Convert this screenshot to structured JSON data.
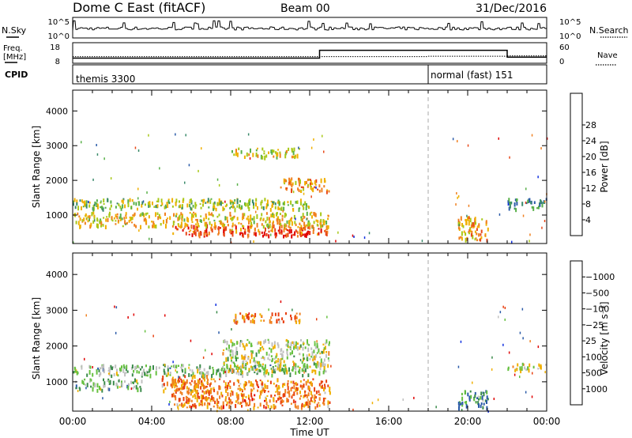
{
  "header": {
    "title": "Dome C East (fitACF)",
    "beam": "Beam 00",
    "date": "31/Dec/2016"
  },
  "strip_labels": {
    "nsky": "N.Sky",
    "nsearch": "N.Search",
    "freq_top": "Freq.",
    "freq_unit": "[MHz]",
    "nave": "Nave",
    "cpid": "CPID",
    "nsky_top": "10^5",
    "nsky_bottom": "10^0",
    "nsearch_top": "10^5",
    "nsearch_bottom": "10^0",
    "freq_max": "18",
    "freq_min": "8",
    "nave_max": "60",
    "nave_min": "0"
  },
  "cpid_modes": [
    {
      "label": "themis 3300",
      "start_hour": 0
    },
    {
      "label": "normal (fast) 151",
      "start_hour": 18
    }
  ],
  "axes": {
    "ylabel": "Slant Range [km]",
    "yticks": [
      1000,
      2000,
      3000,
      4000
    ],
    "xlabel": "Time UT",
    "xticks": [
      "00:00",
      "04:00",
      "08:00",
      "12:00",
      "16:00",
      "20:00",
      "00:00"
    ]
  },
  "power_scale": {
    "label": "Power [dB]",
    "ticks": [
      "4",
      "8",
      "12",
      "16",
      "20",
      "24",
      "28"
    ],
    "colors": [
      "#1030e0",
      "#2a5aa8",
      "#3a8a6a",
      "#58b048",
      "#a8c818",
      "#f0b000",
      "#f08020",
      "#e84818",
      "#e00000"
    ]
  },
  "velocity_scale": {
    "label": "Velocity [m s⁻¹]",
    "ticks": [
      "1000",
      "500",
      "100",
      "25",
      "−25",
      "−100",
      "−500",
      "−1000"
    ],
    "colors": [
      "#1030e0",
      "#2a5aa8",
      "#3a8a4a",
      "#66c040",
      "#c0c0c0",
      "#f0b000",
      "#f08020",
      "#e84010",
      "#e00000"
    ]
  },
  "chart_data": [
    {
      "type": "heatmap",
      "title": "Power",
      "x_range_hours": [
        0,
        24
      ],
      "y_range_km": [
        180,
        4600
      ],
      "colorbar": "Power [dB]",
      "features": [
        {
          "hours": [
            0,
            12
          ],
          "range_km": [
            1200,
            1500
          ],
          "level_db": 14
        },
        {
          "hours": [
            5,
            13
          ],
          "range_km": [
            450,
            750
          ],
          "level_db": 24
        },
        {
          "hours": [
            9.5,
            12
          ],
          "range_km": [
            420,
            600
          ],
          "level_db": 28
        },
        {
          "hours": [
            0,
            13
          ],
          "range_km": [
            700,
            1100
          ],
          "level_db": 18
        },
        {
          "hours": [
            8,
            11.5
          ],
          "range_km": [
            2700,
            2950
          ],
          "level_db": 16
        },
        {
          "hours": [
            10.5,
            13
          ],
          "range_km": [
            1700,
            2100
          ],
          "level_db": 20
        },
        {
          "hours": [
            19.5,
            21
          ],
          "range_km": [
            300,
            1000
          ],
          "level_db": 20
        },
        {
          "hours": [
            22,
            24
          ],
          "range_km": [
            1200,
            1500
          ],
          "level_db": 8
        }
      ]
    },
    {
      "type": "heatmap",
      "title": "Velocity",
      "x_range_hours": [
        0,
        24
      ],
      "y_range_km": [
        180,
        4600
      ],
      "colorbar": "Velocity [m s⁻¹]",
      "features": [
        {
          "hours": [
            0,
            12
          ],
          "range_km": [
            1200,
            1500
          ],
          "velocity": 50
        },
        {
          "hours": [
            5,
            13
          ],
          "range_km": [
            300,
            1100
          ],
          "velocity": -300
        },
        {
          "hours": [
            4.5,
            7
          ],
          "range_km": [
            700,
            1200
          ],
          "velocity": -150
        },
        {
          "hours": [
            0,
            3.5
          ],
          "range_km": [
            800,
            1100
          ],
          "velocity": 80
        },
        {
          "hours": [
            7.5,
            13
          ],
          "range_km": [
            1300,
            2200
          ],
          "velocity": 0
        },
        {
          "hours": [
            8,
            11.5
          ],
          "range_km": [
            2700,
            2950
          ],
          "velocity": -300
        },
        {
          "hours": [
            22,
            24
          ],
          "range_km": [
            1350,
            1550
          ],
          "velocity": 0
        },
        {
          "hours": [
            19.5,
            21
          ],
          "range_km": [
            300,
            800
          ],
          "velocity": 200
        }
      ]
    }
  ]
}
